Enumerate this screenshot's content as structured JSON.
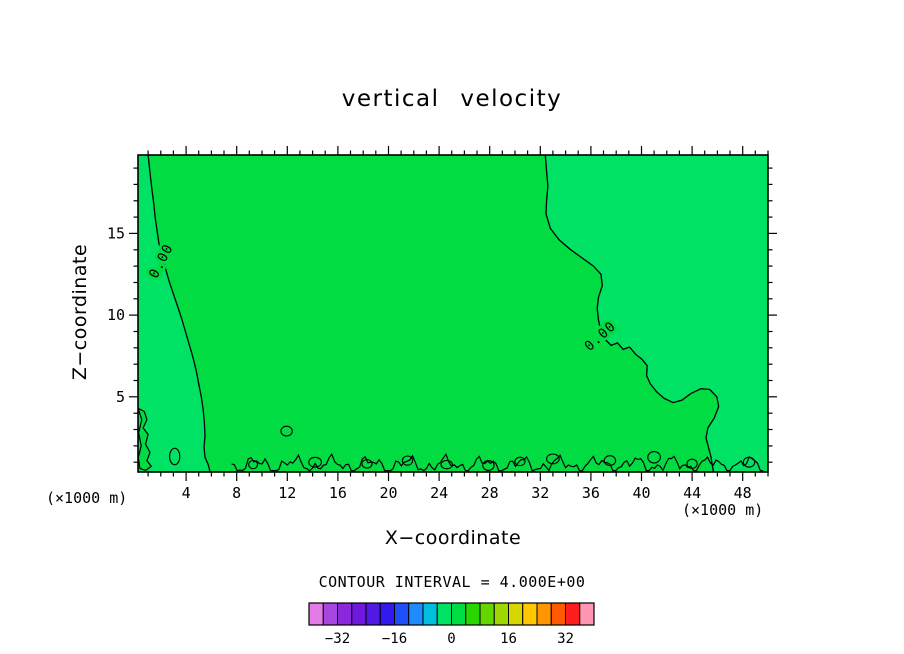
{
  "chart_data": {
    "type": "heatmap",
    "variant": "filled contour plot",
    "title": "vertical velocity",
    "xlabel": "X−coordinate",
    "ylabel": "Z−coordinate",
    "x_units_label": "(×1000 m)",
    "z_units_label": "(×1000 m)",
    "xlim": [
      0.2,
      50.0
    ],
    "zlim": [
      0.4,
      19.8
    ],
    "x_tick_labels": [
      4,
      8,
      12,
      16,
      20,
      24,
      28,
      32,
      36,
      40,
      44,
      48
    ],
    "x_major_step": 4,
    "x_minor_step": 1,
    "z_tick_labels": [
      5,
      10,
      15
    ],
    "z_major_step": 5,
    "z_minor_step": 1,
    "contour_interval_text": "CONTOUR INTERVAL = 4.000E+00",
    "contour_interval": 4.0,
    "shown_contour_level": 0.0,
    "field_fill_positive": "#00dc41",
    "field_fill_negative": "#00e263",
    "line_color": "#000000",
    "contour_labels": [
      {
        "text": "0.00",
        "x": 2.05,
        "z": 13.3,
        "angle": -63
      },
      {
        "text": "0.00",
        "x": 36.75,
        "z": 8.7,
        "angle": -42
      }
    ],
    "contours": {
      "left_zero_line": [
        [
          1.0,
          19.8
        ],
        [
          1.15,
          18.7
        ],
        [
          1.3,
          17.7
        ],
        [
          1.45,
          16.8
        ],
        [
          1.55,
          16.0
        ],
        [
          1.7,
          15.2
        ],
        [
          1.85,
          14.4
        ],
        [
          2.1,
          13.7
        ],
        [
          2.35,
          12.9
        ],
        [
          2.65,
          12.1
        ],
        [
          3.0,
          11.3
        ],
        [
          3.35,
          10.5
        ],
        [
          3.65,
          9.8
        ],
        [
          3.95,
          9.0
        ],
        [
          4.25,
          8.2
        ],
        [
          4.55,
          7.4
        ],
        [
          4.8,
          6.6
        ],
        [
          5.0,
          5.8
        ],
        [
          5.2,
          5.0
        ],
        [
          5.35,
          4.2
        ],
        [
          5.45,
          3.4
        ],
        [
          5.5,
          2.6
        ],
        [
          5.42,
          1.9
        ],
        [
          5.5,
          1.3
        ],
        [
          5.75,
          0.85
        ],
        [
          5.9,
          0.4
        ]
      ],
      "right_zero_line": [
        [
          32.4,
          19.8
        ],
        [
          32.5,
          18.8
        ],
        [
          32.6,
          17.9
        ],
        [
          32.5,
          17.0
        ],
        [
          32.45,
          16.2
        ],
        [
          32.8,
          15.3
        ],
        [
          33.5,
          14.6
        ],
        [
          34.4,
          14.0
        ],
        [
          35.3,
          13.5
        ],
        [
          36.2,
          13.0
        ],
        [
          36.8,
          12.5
        ],
        [
          36.9,
          11.8
        ],
        [
          36.6,
          11.1
        ],
        [
          36.5,
          10.4
        ],
        [
          36.6,
          9.7
        ],
        [
          36.8,
          9.0
        ],
        [
          37.15,
          8.5
        ],
        [
          37.6,
          8.15
        ],
        [
          38.1,
          8.3
        ],
        [
          38.55,
          7.9
        ],
        [
          39.05,
          8.05
        ],
        [
          39.55,
          7.6
        ],
        [
          40.05,
          7.3
        ],
        [
          40.45,
          6.9
        ],
        [
          40.4,
          6.3
        ],
        [
          40.7,
          5.8
        ],
        [
          41.2,
          5.3
        ],
        [
          41.8,
          4.9
        ],
        [
          42.5,
          4.65
        ],
        [
          43.2,
          4.8
        ],
        [
          43.9,
          5.2
        ],
        [
          44.7,
          5.5
        ],
        [
          45.4,
          5.45
        ],
        [
          45.95,
          5.0
        ],
        [
          46.1,
          4.4
        ],
        [
          45.75,
          3.7
        ],
        [
          45.25,
          3.1
        ],
        [
          45.1,
          2.5
        ],
        [
          45.3,
          1.9
        ],
        [
          45.5,
          1.3
        ],
        [
          45.6,
          0.8
        ],
        [
          45.7,
          0.4
        ]
      ],
      "left_wall_blob": [
        [
          0.2,
          4.3
        ],
        [
          0.7,
          4.1
        ],
        [
          0.9,
          3.6
        ],
        [
          0.6,
          3.1
        ],
        [
          1.0,
          2.7
        ],
        [
          0.8,
          2.1
        ],
        [
          1.15,
          1.6
        ],
        [
          0.9,
          1.1
        ],
        [
          1.25,
          0.75
        ],
        [
          0.8,
          0.5
        ],
        [
          0.35,
          0.62
        ],
        [
          0.22,
          1.3
        ],
        [
          0.45,
          2.0
        ],
        [
          0.25,
          2.8
        ],
        [
          0.5,
          3.6
        ]
      ],
      "bottom_noise": {
        "x0": 7.6,
        "x1": 49.8,
        "base": 0.85,
        "waves": [
          [
            0.3,
            2.1,
            0.4
          ],
          [
            0.22,
            4.9,
            1.2
          ],
          [
            0.14,
            9.7,
            2.3
          ]
        ]
      },
      "loops": [
        [
          3.1,
          1.35,
          0.4,
          0.5
        ],
        [
          9.3,
          0.85,
          0.35,
          0.25
        ],
        [
          11.95,
          2.9,
          0.45,
          0.3
        ],
        [
          14.2,
          1.0,
          0.5,
          0.3
        ],
        [
          18.3,
          0.9,
          0.4,
          0.26
        ],
        [
          21.5,
          1.1,
          0.4,
          0.28
        ],
        [
          24.6,
          0.85,
          0.45,
          0.26
        ],
        [
          27.9,
          0.8,
          0.45,
          0.3
        ],
        [
          30.4,
          1.05,
          0.4,
          0.26
        ],
        [
          33.0,
          1.2,
          0.5,
          0.3
        ],
        [
          37.5,
          1.1,
          0.45,
          0.3
        ],
        [
          41.0,
          1.3,
          0.5,
          0.35
        ],
        [
          44.0,
          0.9,
          0.4,
          0.28
        ],
        [
          48.5,
          1.0,
          0.45,
          0.3
        ]
      ]
    },
    "colorbar": {
      "min": -40,
      "max": 40,
      "step": 4,
      "tick_labels": [
        -32,
        -16,
        0,
        16,
        32
      ],
      "colors": [
        "#e57ce5",
        "#aa46e0",
        "#8c28dc",
        "#6e19dc",
        "#5019e6",
        "#3219f0",
        "#1e50fa",
        "#1e8cff",
        "#00bedc",
        "#00e263",
        "#00dc41",
        "#28d700",
        "#64d700",
        "#a0d700",
        "#d7d700",
        "#ffc800",
        "#ff9600",
        "#ff5a00",
        "#ff1e1e",
        "#ff96b4"
      ]
    }
  }
}
